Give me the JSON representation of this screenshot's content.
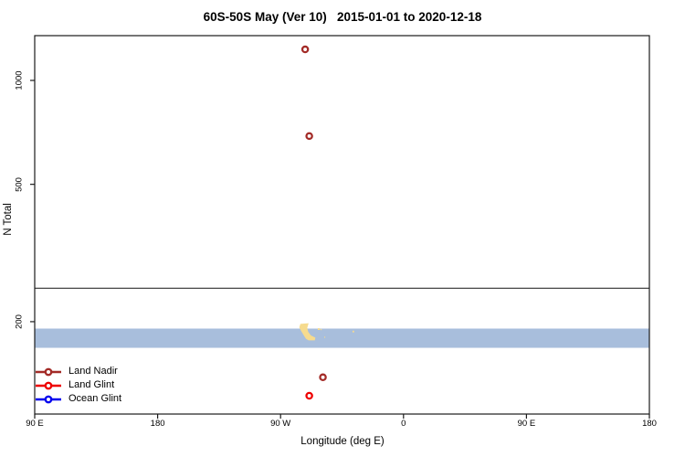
{
  "chart_data": {
    "type": "scatter",
    "title": "60S-50S May (Ver 10)   2015-01-01 to 2020-12-18",
    "xlabel": "Longitude (deg E)",
    "ylabel": "N Total",
    "grid": false,
    "background": "#ffffff",
    "x_axis": {
      "domain": [
        -270,
        180
      ],
      "ticks": [
        {
          "value": -270,
          "label": "90 E"
        },
        {
          "value": -180,
          "label": "180"
        },
        {
          "value": -90,
          "label": "90 W"
        },
        {
          "value": 0,
          "label": "0"
        },
        {
          "value": 90,
          "label": "90 E"
        },
        {
          "value": 180,
          "label": "180"
        }
      ]
    },
    "y_axis": {
      "scale": "log10",
      "domain": [
        108,
        1348
      ],
      "ticks": [
        {
          "value": 200,
          "label": "200"
        },
        {
          "value": 500,
          "label": "500"
        },
        {
          "value": 1000,
          "label": "1000"
        }
      ]
    },
    "reference_line": {
      "y_value": 250,
      "color": "#454545"
    },
    "ocean_band": {
      "y_top_value": 191,
      "y_bottom_value": 168,
      "color": "#A8BEDC",
      "land_color": "#F6DB8E",
      "land_patches": [
        {
          "name": "south-america-tip",
          "points": [
            [
              -75.5,
              197
            ],
            [
              -69.5,
              198
            ],
            [
              -70.5,
              192
            ],
            [
              -69.8,
              187
            ],
            [
              -67.8,
              182.5
            ],
            [
              -64.5,
              179.8
            ],
            [
              -64.9,
              176.5
            ],
            [
              -69.5,
              176.5
            ],
            [
              -71.5,
              178.5
            ],
            [
              -72.8,
              182
            ],
            [
              -74.6,
              187
            ],
            [
              -76.3,
              192.5
            ]
          ]
        },
        {
          "name": "falkland-west",
          "points": [
            [
              -62.8,
              191.5
            ],
            [
              -61.2,
              191.5
            ],
            [
              -61.2,
              189.3
            ],
            [
              -62.8,
              189.3
            ]
          ]
        },
        {
          "name": "falkland-east",
          "points": [
            [
              -60.7,
              190.5
            ],
            [
              -59.9,
              190.5
            ],
            [
              -59.9,
              189.0
            ],
            [
              -60.7,
              189.0
            ]
          ]
        },
        {
          "name": "islet-speck",
          "points": [
            [
              -58.0,
              181.0
            ],
            [
              -57.3,
              181.0
            ],
            [
              -57.3,
              179.6
            ],
            [
              -58.0,
              179.6
            ]
          ]
        },
        {
          "name": "south-georgia",
          "points": [
            [
              -37.3,
              188.3
            ],
            [
              -36.2,
              188.3
            ],
            [
              -36.2,
              186.2
            ],
            [
              -37.3,
              186.2
            ]
          ]
        }
      ]
    },
    "series": [
      {
        "name": "Land Nadir",
        "color": "#A32B27",
        "marker": "open-circle",
        "points": [
          [
            -72,
            1230
          ],
          [
            -69,
            690
          ],
          [
            -59,
            138
          ]
        ]
      },
      {
        "name": "Land Glint",
        "color": "#EE0000",
        "marker": "open-circle",
        "points": [
          [
            -69,
            122
          ]
        ]
      },
      {
        "name": "Ocean Glint",
        "color": "#0000EE",
        "marker": "open-circle",
        "points": []
      }
    ],
    "legend": {
      "position": "bottom-left"
    }
  }
}
